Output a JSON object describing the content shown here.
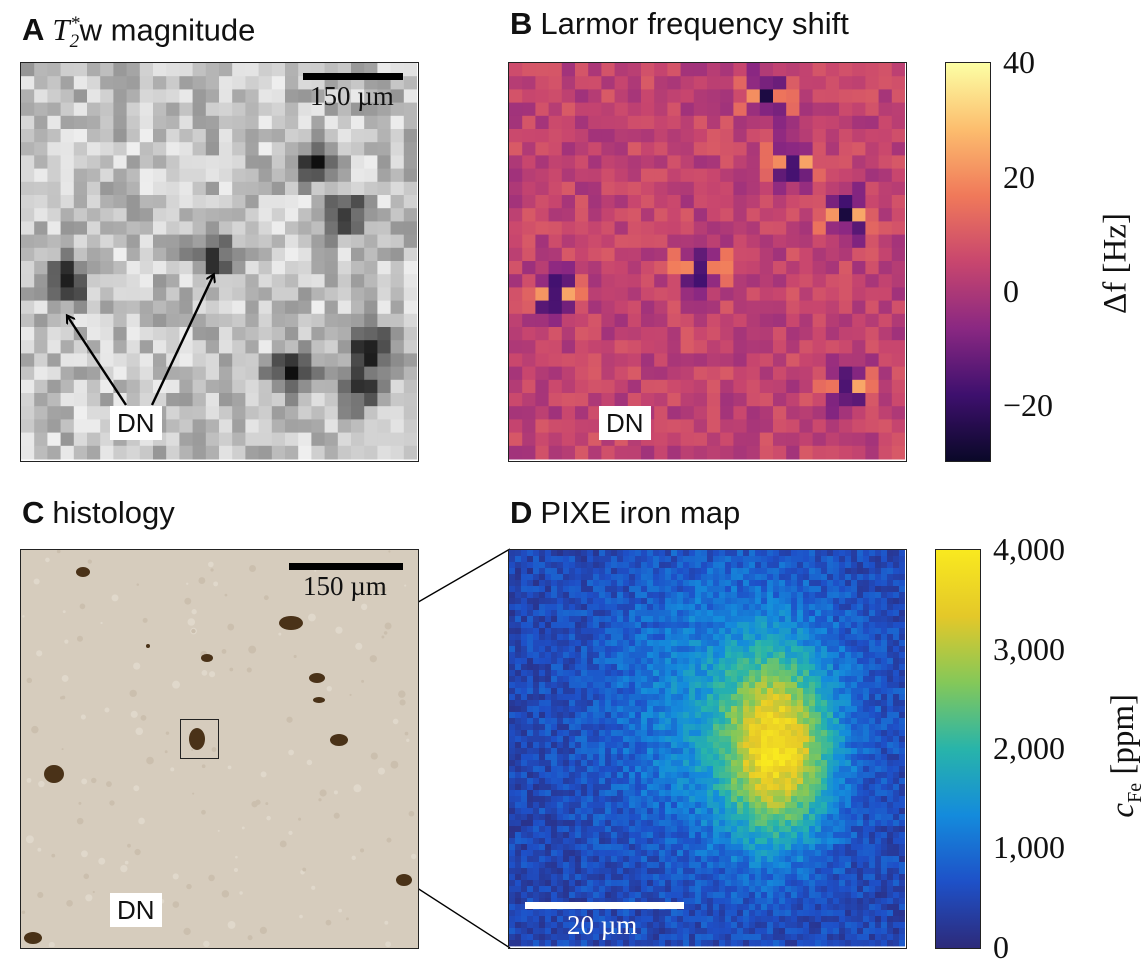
{
  "panels": {
    "a": {
      "letter": "A",
      "title_pre": "T",
      "title_sub": "2",
      "title_sup": "*",
      "title_post": "w magnitude",
      "scalebar": "150 µm",
      "dn_label": "DN"
    },
    "b": {
      "letter": "B",
      "title": "Larmor frequency shift",
      "dn_label": "DN",
      "colorbar": {
        "label": "Δf [Hz]",
        "ticks": [
          "40",
          "20",
          "0",
          "−20"
        ]
      }
    },
    "c": {
      "letter": "C",
      "title": "histology",
      "scalebar": "150 µm",
      "dn_label": "DN"
    },
    "d": {
      "letter": "D",
      "title": "PIXE iron map",
      "scalebar": "20 µm",
      "colorbar": {
        "label_main": "c",
        "label_sub": "Fe",
        "label_unit": "[ppm]",
        "ticks": [
          "4,000",
          "3,000",
          "2,000",
          "1,000",
          "0"
        ]
      }
    }
  },
  "colors": {
    "magma_low": "#1b0c41",
    "magma_mid": "#b5367a",
    "magma_high": "#fcffa4",
    "viridis_low": "#2d2a7a",
    "viridis_high": "#f9e91f",
    "histology_bg": "#d6ccbd",
    "neuron_stain": "#4a3218"
  },
  "icons": {
    "arrow": "arrow-icon"
  }
}
